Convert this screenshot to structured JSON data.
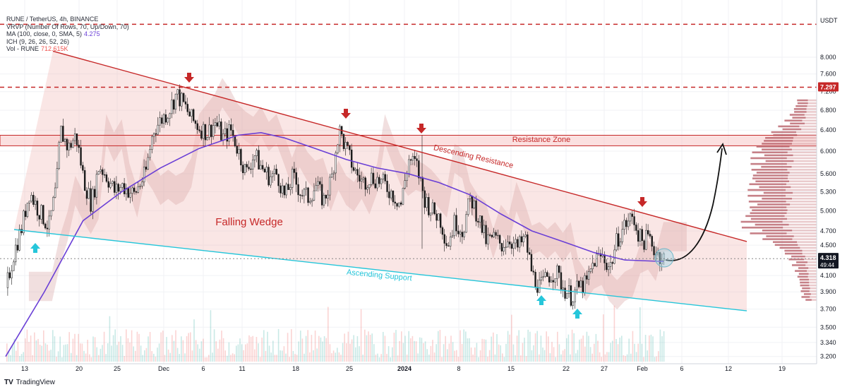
{
  "header": {
    "symbol_line": "RUNE / TetherUS, 4h, BINANCE",
    "vrvp_line": "VRVP (Number Of Rows, 70, Up/Down, 70)",
    "ma_line": "MA (100, close, 0, SMA, 5)",
    "ma_value": "4.275",
    "ich_line": "ICH (9, 26, 26, 52, 26)",
    "vol_line": "Vol - RUNE",
    "vol_value": "712.615K"
  },
  "footer": {
    "brand": "TradingView"
  },
  "colors": {
    "candle_up": "#26a69a",
    "candle_down": "#ef5350",
    "ma": "#6a3fd6",
    "resistance": "#c62828",
    "support": "#26c6da",
    "arrow_down": "#c62828",
    "arrow_up": "#26c6da",
    "wedge_fill": "#f2b8b5",
    "cloud": "#d8a3a3"
  },
  "chart_data": {
    "type": "candlestick",
    "symbol": "RUNE / TetherUS",
    "interval": "4h",
    "exchange": "BINANCE",
    "currency": "USDT",
    "y_axis": {
      "scale": "log",
      "ticks": [
        "8.000",
        "7.600",
        "7.200",
        "6.800",
        "6.400",
        "6.000",
        "5.600",
        "5.300",
        "5.000",
        "4.700",
        "4.500",
        "4.100",
        "3.900",
        "3.700",
        "3.500",
        "3.340",
        "3.200"
      ],
      "range": [
        3.15,
        9.05
      ]
    },
    "x_axis": {
      "ticks": [
        "13",
        "20",
        "25",
        "Dec",
        "6",
        "11",
        "18",
        "25",
        "2024",
        "8",
        "15",
        "22",
        "27",
        "Feb",
        "6",
        "12",
        "19"
      ],
      "bold_ticks": [
        "2024"
      ]
    },
    "price_path": [
      {
        "x": 0,
        "p": 3.95
      },
      {
        "x": 1,
        "p": 4.4
      },
      {
        "x": 2,
        "p": 4.75
      },
      {
        "x": 3,
        "p": 5.3
      },
      {
        "x": 4,
        "p": 5.05
      },
      {
        "x": 5.5,
        "p": 4.75
      },
      {
        "x": 6.5,
        "p": 5.4
      },
      {
        "x": 7,
        "p": 6.4
      },
      {
        "x": 8,
        "p": 6.05
      },
      {
        "x": 9,
        "p": 6.3
      },
      {
        "x": 10,
        "p": 5.5
      },
      {
        "x": 11,
        "p": 5.1
      },
      {
        "x": 12,
        "p": 5.75
      },
      {
        "x": 13,
        "p": 5.55
      },
      {
        "x": 14,
        "p": 5.3
      },
      {
        "x": 15,
        "p": 5.4
      },
      {
        "x": 16.5,
        "p": 5.25
      },
      {
        "x": 18,
        "p": 5.6
      },
      {
        "x": 19,
        "p": 6.4
      },
      {
        "x": 21,
        "p": 6.8
      },
      {
        "x": 22,
        "p": 7.15
      },
      {
        "x": 23,
        "p": 6.9
      },
      {
        "x": 24,
        "p": 6.6
      },
      {
        "x": 25,
        "p": 6.45
      },
      {
        "x": 26,
        "p": 6.35
      },
      {
        "x": 27,
        "p": 6.55
      },
      {
        "x": 28,
        "p": 6.25
      },
      {
        "x": 29,
        "p": 6.4
      },
      {
        "x": 30,
        "p": 6.0
      },
      {
        "x": 31,
        "p": 5.6
      },
      {
        "x": 32,
        "p": 5.95
      },
      {
        "x": 33,
        "p": 5.7
      },
      {
        "x": 34,
        "p": 5.55
      },
      {
        "x": 35,
        "p": 5.6
      },
      {
        "x": 36,
        "p": 5.2
      },
      {
        "x": 37,
        "p": 5.55
      },
      {
        "x": 38,
        "p": 5.3
      },
      {
        "x": 39,
        "p": 5.2
      },
      {
        "x": 40,
        "p": 5.4
      },
      {
        "x": 41,
        "p": 5.15
      },
      {
        "x": 42,
        "p": 5.5
      },
      {
        "x": 43,
        "p": 6.4
      },
      {
        "x": 44,
        "p": 6.0
      },
      {
        "x": 45,
        "p": 5.65
      },
      {
        "x": 46,
        "p": 5.45
      },
      {
        "x": 47,
        "p": 5.55
      },
      {
        "x": 48,
        "p": 5.5
      },
      {
        "x": 49,
        "p": 5.4
      },
      {
        "x": 50,
        "p": 5.25
      },
      {
        "x": 51,
        "p": 5.1
      },
      {
        "x": 52,
        "p": 5.85
      },
      {
        "x": 53,
        "p": 5.75
      },
      {
        "x": 54,
        "p": 5.2
      },
      {
        "x": 55,
        "p": 5.0
      },
      {
        "x": 56,
        "p": 4.9
      },
      {
        "x": 57,
        "p": 4.5
      },
      {
        "x": 58,
        "p": 4.85
      },
      {
        "x": 59,
        "p": 4.7
      },
      {
        "x": 60,
        "p": 5.2
      },
      {
        "x": 61,
        "p": 4.9
      },
      {
        "x": 62,
        "p": 4.55
      },
      {
        "x": 63,
        "p": 4.6
      },
      {
        "x": 64,
        "p": 4.5
      },
      {
        "x": 65,
        "p": 4.6
      },
      {
        "x": 66,
        "p": 4.45
      },
      {
        "x": 67,
        "p": 4.6
      },
      {
        "x": 68,
        "p": 4.1
      },
      {
        "x": 69,
        "p": 3.95
      },
      {
        "x": 70,
        "p": 4.1
      },
      {
        "x": 71,
        "p": 4.15
      },
      {
        "x": 72,
        "p": 3.95
      },
      {
        "x": 73,
        "p": 3.85
      },
      {
        "x": 74,
        "p": 3.95
      },
      {
        "x": 75,
        "p": 4.0
      },
      {
        "x": 76,
        "p": 4.3
      },
      {
        "x": 77,
        "p": 4.35
      },
      {
        "x": 78,
        "p": 4.2
      },
      {
        "x": 79,
        "p": 4.6
      },
      {
        "x": 80,
        "p": 4.8
      },
      {
        "x": 81,
        "p": 4.9
      },
      {
        "x": 82,
        "p": 4.55
      },
      {
        "x": 83,
        "p": 4.6
      },
      {
        "x": 84,
        "p": 4.4
      },
      {
        "x": 85,
        "p": 4.33
      }
    ],
    "ma_path": [
      {
        "x": 0,
        "p": 3.2
      },
      {
        "x": 5,
        "p": 3.9
      },
      {
        "x": 10,
        "p": 4.85
      },
      {
        "x": 15,
        "p": 5.3
      },
      {
        "x": 20,
        "p": 5.7
      },
      {
        "x": 25,
        "p": 6.05
      },
      {
        "x": 30,
        "p": 6.3
      },
      {
        "x": 33,
        "p": 6.35
      },
      {
        "x": 36,
        "p": 6.25
      },
      {
        "x": 40,
        "p": 6.05
      },
      {
        "x": 44,
        "p": 5.85
      },
      {
        "x": 48,
        "p": 5.7
      },
      {
        "x": 52,
        "p": 5.6
      },
      {
        "x": 56,
        "p": 5.45
      },
      {
        "x": 60,
        "p": 5.25
      },
      {
        "x": 64,
        "p": 4.95
      },
      {
        "x": 68,
        "p": 4.7
      },
      {
        "x": 72,
        "p": 4.55
      },
      {
        "x": 76,
        "p": 4.4
      },
      {
        "x": 80,
        "p": 4.3
      },
      {
        "x": 85,
        "p": 4.28
      }
    ],
    "last_price": "4.318",
    "countdown": "49:44",
    "level_marker": "7.297",
    "annotations": {
      "pattern": "Falling Wedge",
      "resistance_line": "Descending Resistance",
      "support_line": "Ascending Support",
      "zone": "Resistance Zone"
    }
  }
}
